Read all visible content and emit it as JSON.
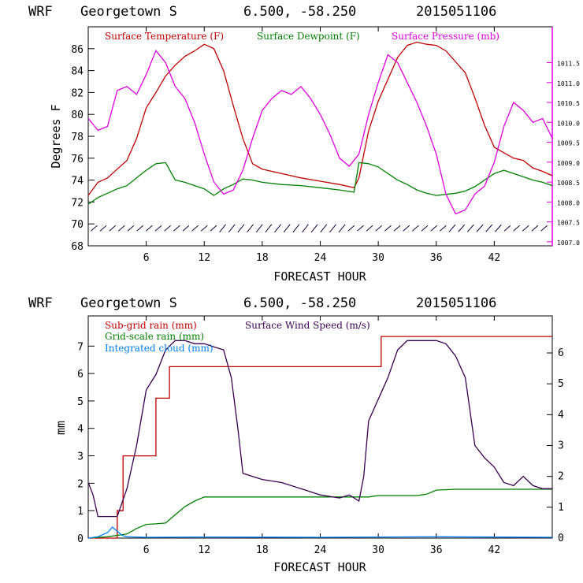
{
  "chart_data": [
    {
      "type": "line",
      "title_model": "WRF",
      "title_location": "Georgetown S",
      "title_coords": "6.500, -58.250",
      "title_date": "2015051106",
      "xlabel": "FORECAST HOUR",
      "ylabel": "Degrees F",
      "xlim": [
        0,
        48
      ],
      "ylim": [
        68,
        88
      ],
      "y2lim": [
        1006.9,
        1012.4
      ],
      "x_ticks": [
        6,
        12,
        18,
        24,
        30,
        36,
        42
      ],
      "y_ticks": [
        68,
        70,
        72,
        74,
        76,
        78,
        80,
        82,
        84,
        86
      ],
      "y2_ticks": [
        "1007.0",
        "1007.5",
        "1008.0",
        "1008.5",
        "1009.0",
        "1009.5",
        "1010.0",
        "1010.5",
        "1011.0",
        "1011.5"
      ],
      "y2_tick_values": [
        1007.0,
        1007.5,
        1008.0,
        1008.5,
        1009.0,
        1009.5,
        1010.0,
        1010.5,
        1011.0,
        1011.5
      ],
      "legend": [
        {
          "label": "Surface Temperature (F)",
          "color": "#c00000"
        },
        {
          "label": "Surface Dewpoint (F)",
          "color": "#008000"
        },
        {
          "label": "Surface Pressure (mb)",
          "color": "#e000e0"
        }
      ],
      "series": [
        {
          "name": "Surface Temperature (F)",
          "color": "#c00000",
          "axis": "left",
          "x": [
            0,
            1,
            2,
            3,
            4,
            5,
            6,
            7,
            8,
            9,
            10,
            11,
            12,
            13,
            14,
            15,
            16,
            17,
            18,
            20,
            22,
            24,
            26,
            27.5,
            28,
            29,
            30,
            31,
            32,
            33,
            34,
            35,
            36,
            37,
            38,
            39,
            40,
            41,
            42,
            43,
            44,
            45,
            46,
            47,
            48
          ],
          "y": [
            72.6,
            73.8,
            74.2,
            75.0,
            75.8,
            77.8,
            80.6,
            82.0,
            83.5,
            84.5,
            85.3,
            85.8,
            86.4,
            86.0,
            84.0,
            80.8,
            77.8,
            75.5,
            75.0,
            74.6,
            74.2,
            73.9,
            73.6,
            73.3,
            74.2,
            78.5,
            81.2,
            83.2,
            85.2,
            86.3,
            86.6,
            86.4,
            86.3,
            85.8,
            84.8,
            83.8,
            81.5,
            79.0,
            77.0,
            76.5,
            76.0,
            75.8,
            75.1,
            74.8,
            74.4
          ]
        },
        {
          "name": "Surface Dewpoint (F)",
          "color": "#008000",
          "axis": "left",
          "x": [
            0,
            1,
            2,
            3,
            4,
            5,
            6,
            7,
            8,
            9,
            10,
            11,
            12,
            13,
            14,
            15,
            16,
            17,
            18,
            20,
            22,
            24,
            26,
            27.5,
            28,
            29,
            30,
            31,
            32,
            33,
            34,
            35,
            36,
            37,
            38,
            39,
            40,
            41,
            42,
            43,
            44,
            45,
            46,
            47,
            48
          ],
          "y": [
            71.8,
            72.4,
            72.8,
            73.2,
            73.5,
            74.2,
            74.9,
            75.5,
            75.6,
            74.0,
            73.8,
            73.5,
            73.2,
            72.6,
            73.2,
            73.6,
            74.1,
            74.0,
            73.8,
            73.6,
            73.5,
            73.3,
            73.1,
            72.9,
            75.6,
            75.5,
            75.2,
            74.6,
            74.0,
            73.6,
            73.1,
            72.8,
            72.6,
            72.7,
            72.8,
            73.0,
            73.4,
            74.0,
            74.6,
            74.9,
            74.6,
            74.3,
            74.0,
            73.8,
            73.5
          ]
        },
        {
          "name": "Surface Pressure (mb)",
          "color": "#e000e0",
          "axis": "right",
          "x": [
            0,
            1,
            2,
            3,
            4,
            5,
            6,
            7,
            8,
            9,
            10,
            11,
            12,
            13,
            14,
            15,
            16,
            17,
            18,
            19,
            20,
            21,
            22,
            23,
            24,
            25,
            26,
            27,
            28,
            29,
            30,
            31,
            32,
            33,
            34,
            35,
            36,
            37,
            38,
            39,
            40,
            41,
            42,
            43,
            44,
            45,
            46,
            47,
            48
          ],
          "y": [
            1010.1,
            1009.8,
            1009.9,
            1010.8,
            1010.9,
            1010.7,
            1011.2,
            1011.8,
            1011.5,
            1010.9,
            1010.6,
            1010.0,
            1009.2,
            1008.5,
            1008.2,
            1008.3,
            1008.8,
            1009.6,
            1010.3,
            1010.6,
            1010.8,
            1010.7,
            1010.9,
            1010.6,
            1010.2,
            1009.7,
            1009.1,
            1008.9,
            1009.2,
            1010.2,
            1011.0,
            1011.7,
            1011.5,
            1011.0,
            1010.5,
            1009.9,
            1009.2,
            1008.2,
            1007.7,
            1007.8,
            1008.2,
            1008.4,
            1009.0,
            1009.9,
            1010.5,
            1010.3,
            1010.0,
            1010.1,
            1009.6
          ]
        }
      ],
      "wind_barbs": "surface wind barbs row at ~69.5 F"
    },
    {
      "type": "line",
      "title_model": "WRF",
      "title_location": "Georgetown S",
      "title_coords": "6.500, -58.250",
      "title_date": "2015051106",
      "xlabel": "FORECAST HOUR",
      "ylabel": "mm",
      "xlim": [
        0,
        48
      ],
      "ylim": [
        0,
        8.1
      ],
      "y2lim": [
        0,
        7.2
      ],
      "x_ticks": [
        6,
        12,
        18,
        24,
        30,
        36,
        42
      ],
      "y_ticks": [
        0,
        1,
        2,
        3,
        4,
        5,
        6,
        7
      ],
      "y2_ticks": [
        "0",
        "1",
        "2",
        "3",
        "4",
        "5",
        "6"
      ],
      "y2_tick_values": [
        0,
        1,
        2,
        3,
        4,
        5,
        6
      ],
      "legend": [
        {
          "label": "Sub-grid rain (mm)",
          "color": "#c00000"
        },
        {
          "label": "Grid-scale rain (mm)",
          "color": "#008000"
        },
        {
          "label": "Integrated cloud (mm)",
          "color": "#0080ff"
        },
        {
          "label": "Surface Wind Speed (m/s)",
          "color": "#3a0050"
        }
      ],
      "series": [
        {
          "name": "Sub-grid rain (mm)",
          "color": "#c00000",
          "axis": "left",
          "step": true,
          "x": [
            0,
            2,
            3,
            3.6,
            6.5,
            7.0,
            8.0,
            8.4,
            29.9,
            30.3,
            48
          ],
          "y": [
            0,
            0,
            1.0,
            3.0,
            3.0,
            5.1,
            5.1,
            6.25,
            6.25,
            7.35,
            7.35
          ]
        },
        {
          "name": "Grid-scale rain (mm)",
          "color": "#008000",
          "axis": "left",
          "x": [
            0,
            2,
            4,
            5,
            6,
            7,
            8,
            9,
            10,
            11,
            12,
            20,
            29,
            30,
            34,
            35,
            36,
            38,
            48
          ],
          "y": [
            0,
            0.05,
            0.15,
            0.35,
            0.5,
            0.52,
            0.55,
            0.85,
            1.15,
            1.35,
            1.5,
            1.5,
            1.5,
            1.55,
            1.55,
            1.6,
            1.75,
            1.78,
            1.78
          ]
        },
        {
          "name": "Integrated cloud (mm)",
          "color": "#0080ff",
          "axis": "left",
          "x": [
            0,
            1,
            2,
            2.5,
            3,
            3.5,
            4,
            6,
            12,
            24,
            36,
            48
          ],
          "y": [
            0,
            0.05,
            0.2,
            0.4,
            0.25,
            0.1,
            0.05,
            0.03,
            0.04,
            0.03,
            0.05,
            0.03
          ]
        },
        {
          "name": "Surface Wind Speed (m/s)",
          "color": "#3a0050",
          "axis": "right",
          "x": [
            0,
            0.5,
            1,
            2,
            3,
            4,
            5,
            6,
            7,
            8,
            9,
            10,
            11,
            12,
            13,
            14,
            14.8,
            15.5,
            16,
            17,
            18,
            20,
            22,
            24,
            26,
            27,
            28,
            28.5,
            29,
            30,
            31,
            32,
            33,
            34,
            35,
            36,
            37,
            38,
            39,
            40,
            41,
            42,
            43,
            44,
            45,
            46,
            47,
            48
          ],
          "y": [
            1.8,
            1.4,
            0.7,
            0.7,
            0.7,
            1.6,
            3.0,
            4.8,
            5.3,
            6.1,
            6.4,
            6.4,
            6.3,
            6.3,
            6.2,
            6.1,
            5.2,
            3.5,
            2.1,
            2.0,
            1.9,
            1.8,
            1.6,
            1.4,
            1.3,
            1.4,
            1.2,
            2.0,
            3.8,
            4.5,
            5.2,
            6.1,
            6.4,
            6.4,
            6.4,
            6.4,
            6.3,
            5.9,
            5.2,
            3.0,
            2.6,
            2.3,
            1.8,
            1.7,
            2.0,
            1.7,
            1.6,
            1.6
          ]
        }
      ]
    }
  ]
}
